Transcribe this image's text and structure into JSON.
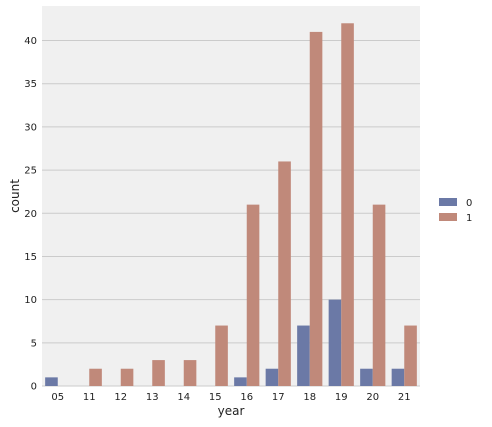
{
  "chart_data": {
    "type": "bar",
    "categories": [
      "05",
      "11",
      "12",
      "13",
      "14",
      "15",
      "16",
      "17",
      "18",
      "19",
      "20",
      "21"
    ],
    "series": [
      {
        "name": "0",
        "color": "#6b79a6",
        "values": [
          1,
          0,
          0,
          0,
          0,
          0,
          1,
          2,
          7,
          10,
          2,
          2
        ]
      },
      {
        "name": "1",
        "color": "#c0897a",
        "values": [
          0,
          2,
          2,
          3,
          3,
          7,
          21,
          26,
          41,
          42,
          21,
          7
        ]
      }
    ],
    "title": "",
    "xlabel": "year",
    "ylabel": "count",
    "ylim": [
      0,
      44
    ],
    "yticks": [
      0,
      5,
      10,
      15,
      20,
      25,
      30,
      35,
      40
    ],
    "grid": "horizontal",
    "legend_position": "right",
    "plot_background": "#f0f0f0",
    "grid_color": "#cbcbcb"
  }
}
